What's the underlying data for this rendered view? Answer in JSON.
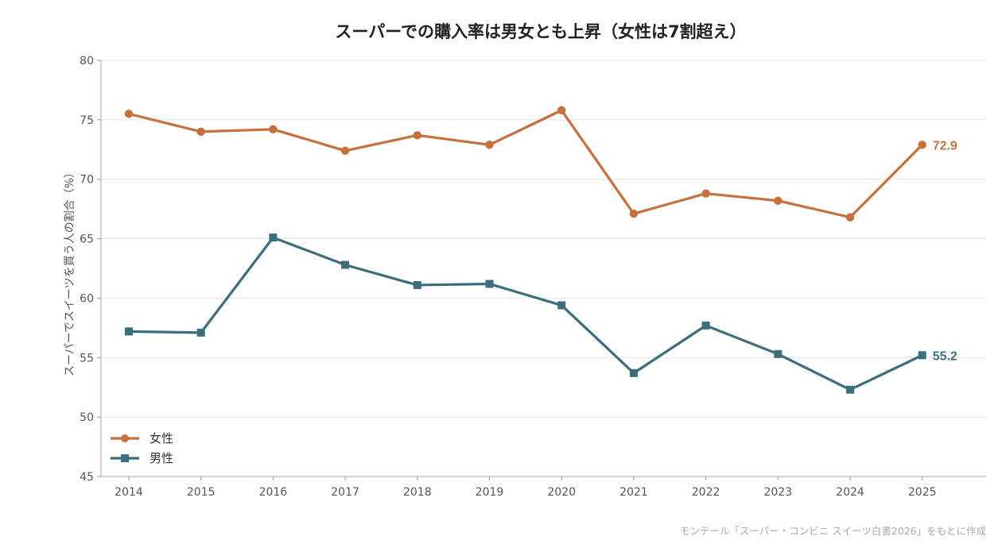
{
  "chart_data": {
    "type": "line",
    "title": "スーパーでの購入率は男女とも上昇（女性は7割超え）",
    "xlabel": "",
    "ylabel": "スーパーでスイーツを買う人の割合（%）",
    "ylim": [
      45,
      80
    ],
    "yticks": [
      45,
      50,
      55,
      60,
      65,
      70,
      75,
      80
    ],
    "categories": [
      "2014",
      "2015",
      "2016",
      "2017",
      "2018",
      "2019",
      "2020",
      "2021",
      "2022",
      "2023",
      "2024",
      "2025"
    ],
    "grid": true,
    "legend_position": "bottom-left",
    "series": [
      {
        "name": "女性",
        "color": "#c8703c",
        "marker": "circle",
        "values": [
          75.5,
          74.0,
          74.2,
          72.4,
          73.7,
          72.9,
          75.8,
          67.1,
          68.8,
          68.2,
          66.8,
          72.9
        ],
        "end_label": "72.9"
      },
      {
        "name": "男性",
        "color": "#3d6e7c",
        "marker": "square",
        "values": [
          57.2,
          57.1,
          65.1,
          62.8,
          61.1,
          61.2,
          59.4,
          53.7,
          57.7,
          55.3,
          52.3,
          55.2
        ],
        "end_label": "55.2"
      }
    ]
  },
  "source": "モンテール「スーパー・コンビニ スイーツ白書2026」をもとに作成"
}
